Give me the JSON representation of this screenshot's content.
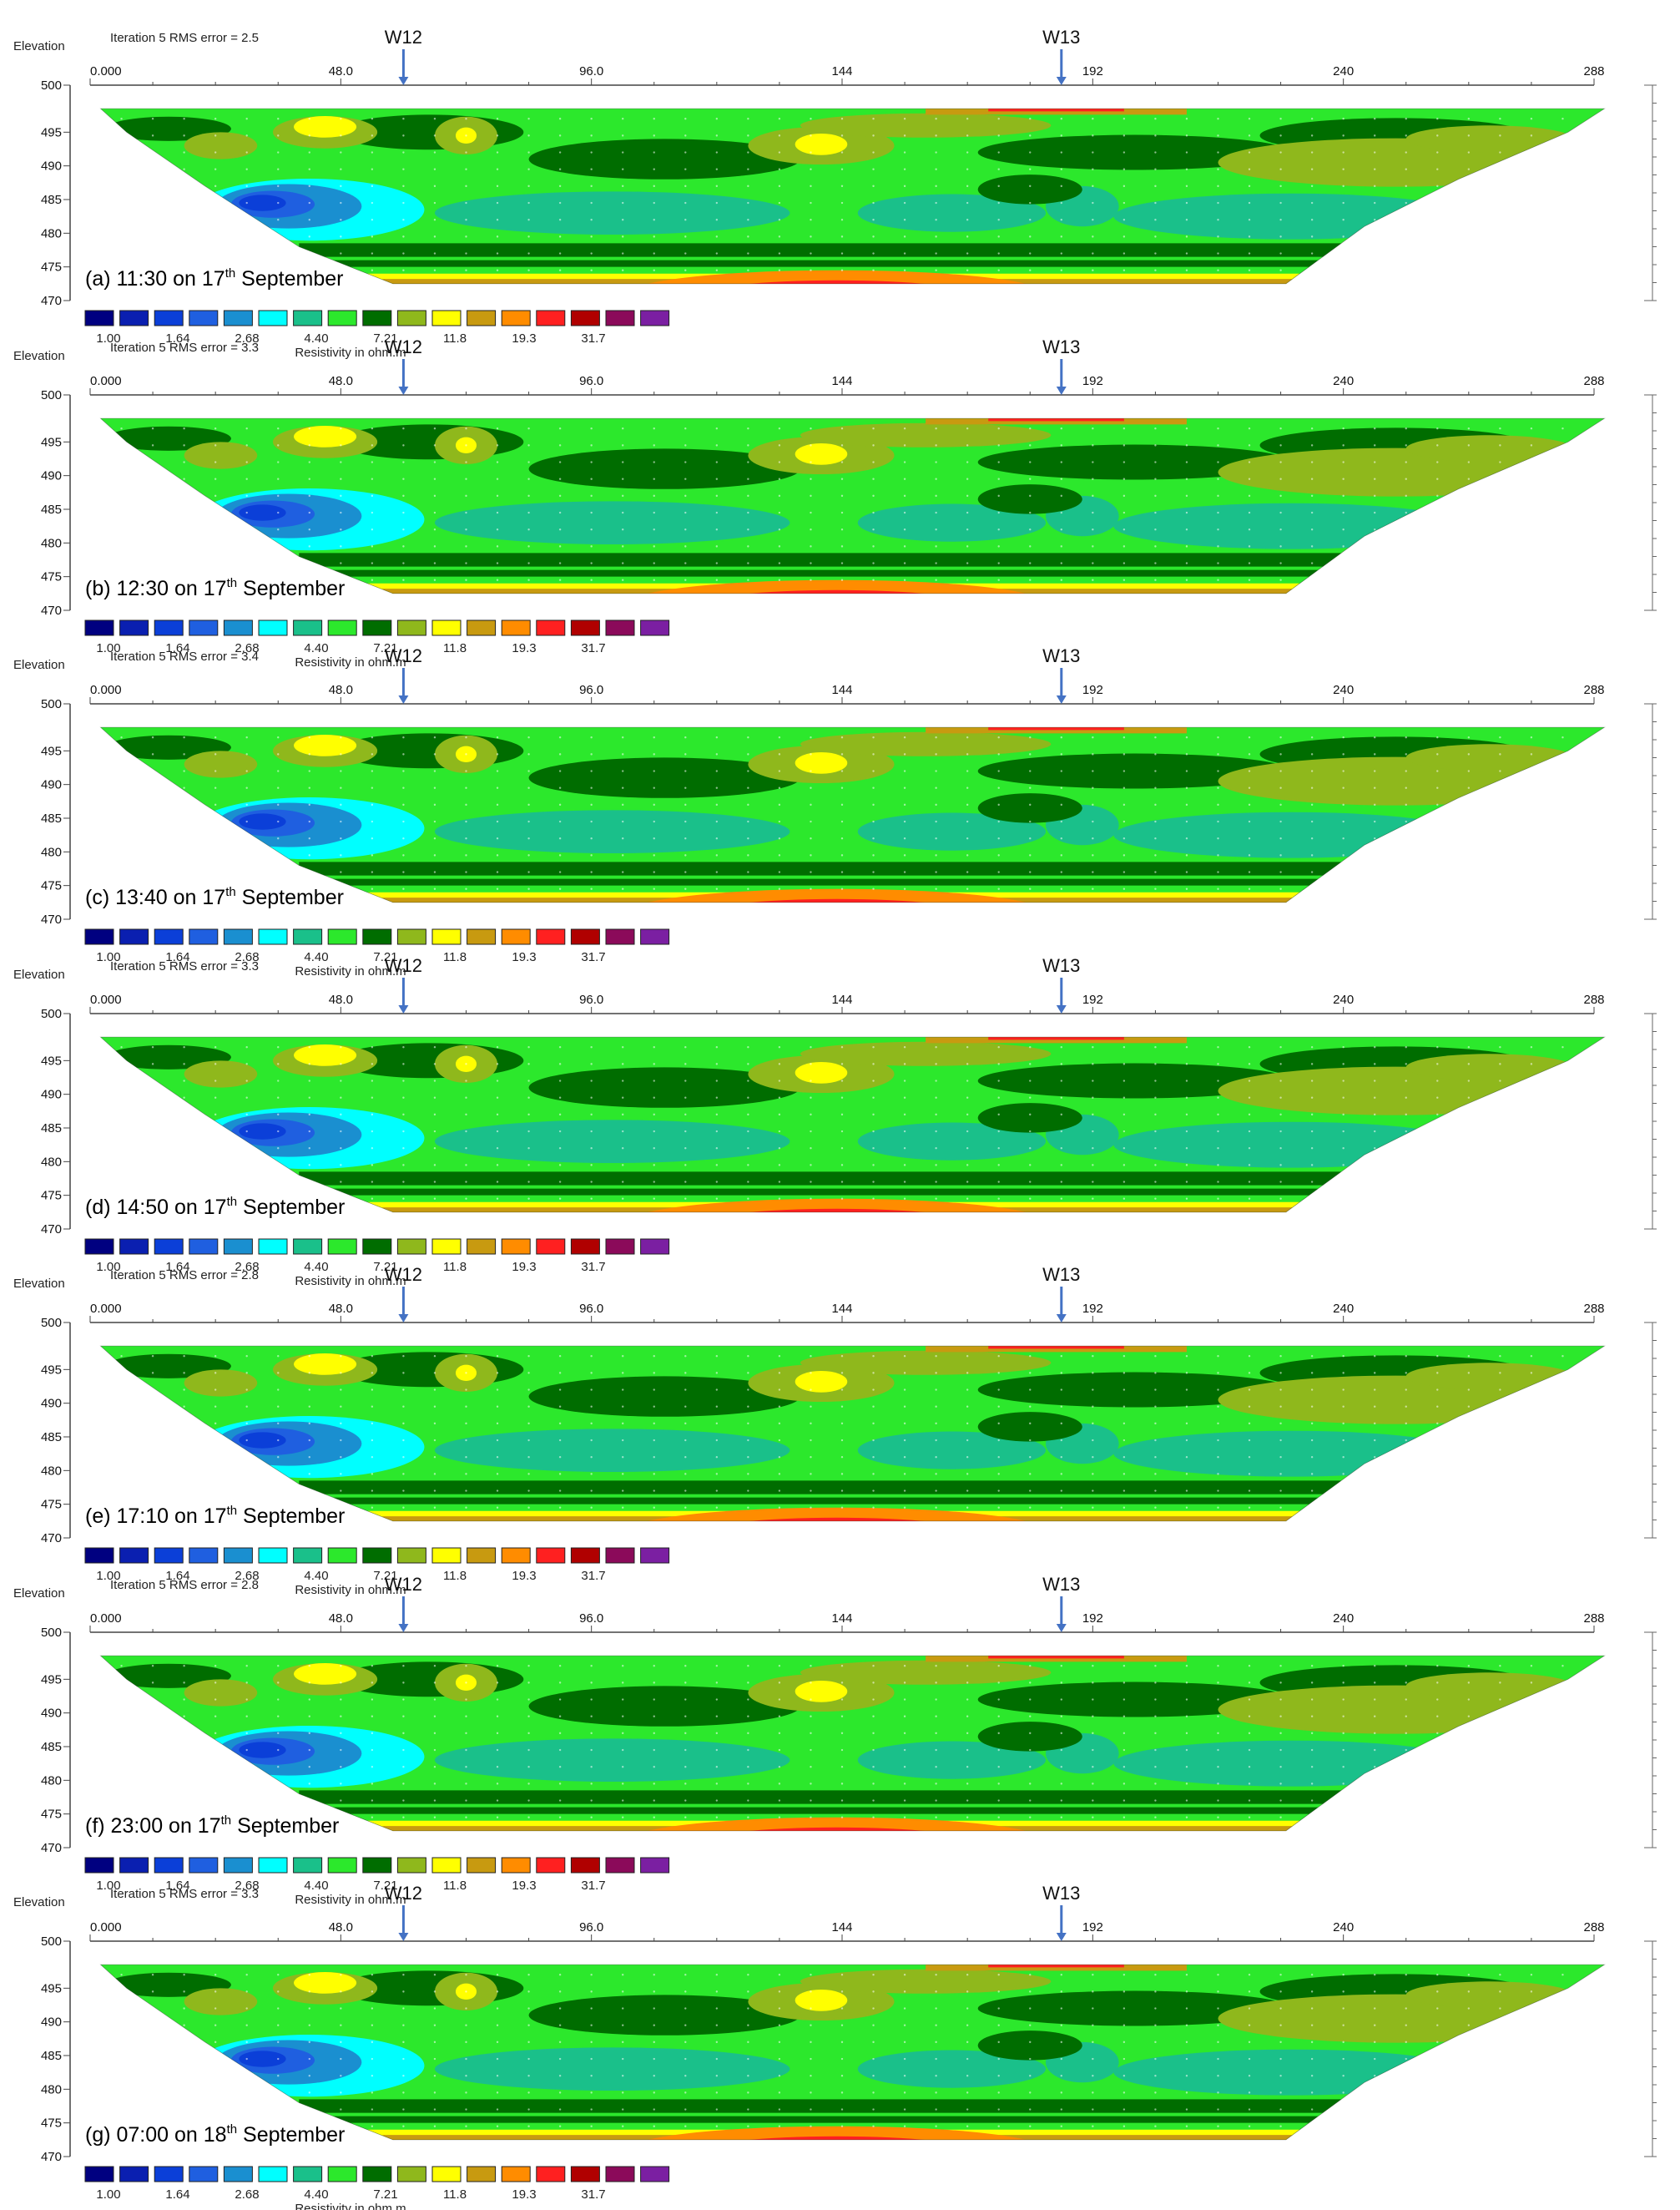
{
  "chart_data": {
    "type": "heatmap",
    "colors": {
      "class_fills": [
        "#000080",
        "#0a1fb0",
        "#0b3fd8",
        "#1f5fe0",
        "#1a8fd0",
        "#00ffff",
        "#1ac08a",
        "#2ce82c",
        "#006d00",
        "#8fb81c",
        "#ffff00",
        "#c89a10",
        "#ff8c00",
        "#ff2020",
        "#b00000",
        "#8b0a5a",
        "#7b1fa2"
      ],
      "well_marker": "#4472c4"
    },
    "legend": {
      "labels": [
        "1.00",
        "1.64",
        "2.68",
        "4.40",
        "7.21",
        "11.8",
        "19.3",
        "31.7"
      ],
      "title": "Resistivity in ohm.m"
    },
    "x_axis_ticks": [
      "0.000",
      "48.0",
      "96.0",
      "144",
      "192",
      "240",
      "288"
    ],
    "x_range": [
      0,
      288
    ],
    "y_axis_label": "Elevation",
    "y_axis_ticks": [
      "500",
      "495",
      "490",
      "485",
      "480",
      "475",
      "470"
    ],
    "y_range": [
      470,
      500
    ],
    "wells": [
      {
        "name": "W12",
        "x": 60
      },
      {
        "name": "W13",
        "x": 186
      }
    ],
    "panels": [
      {
        "letter": "(a)",
        "time": "11:30 on 17",
        "sup": "th",
        "rest": " September",
        "rms": "Iteration 5 RMS error = 2.5"
      },
      {
        "letter": "(b)",
        "time": "12:30 on 17",
        "sup": "th",
        "rest": " September",
        "rms": "Iteration 5 RMS error = 3.3"
      },
      {
        "letter": "(c)",
        "time": "13:40 on 17",
        "sup": "th",
        "rest": " September",
        "rms": "Iteration 5 RMS error = 3.4"
      },
      {
        "letter": "(d)",
        "time": "14:50 on 17",
        "sup": "th",
        "rest": " September",
        "rms": "Iteration 5 RMS error = 3.3"
      },
      {
        "letter": "(e)",
        "time": "17:10 on 17",
        "sup": "th",
        "rest": " September",
        "rms": "Iteration 5 RMS error = 2.8"
      },
      {
        "letter": "(f)",
        "time": "23:00 on 17",
        "sup": "th",
        "rest": " September",
        "rms": "Iteration 5 RMS error = 2.8"
      },
      {
        "letter": "(g)",
        "time": "07:00 on 18",
        "sup": "th",
        "rest": " September",
        "rms": "Iteration 5 RMS error = 3.3"
      }
    ]
  }
}
